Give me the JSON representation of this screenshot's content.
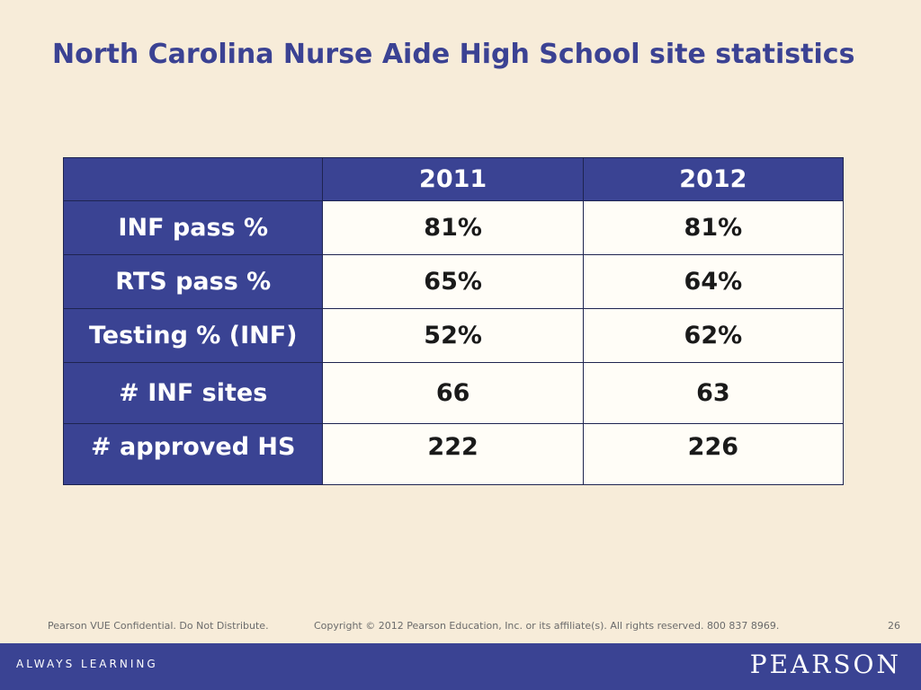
{
  "slide": {
    "title": "North Carolina Nurse Aide High School site statistics"
  },
  "table": {
    "headers": [
      "",
      "2011",
      "2012"
    ],
    "rows": [
      {
        "label": "INF pass %",
        "y2011": "81%",
        "y2012": "81%"
      },
      {
        "label": "RTS pass %",
        "y2011": "65%",
        "y2012": "64%"
      },
      {
        "label": "Testing % (INF)",
        "y2011": "52%",
        "y2012": "62%"
      },
      {
        "label": "# INF sites",
        "y2011": "66",
        "y2012": "63"
      },
      {
        "label": "# approved HS",
        "y2011": "222",
        "y2012": "226"
      }
    ]
  },
  "footer": {
    "confidential": "Pearson VUE Confidential. Do Not Distribute.",
    "copyright": "Copyright © 2012 Pearson Education, Inc. or its affiliate(s). All rights reserved. 800 837 8969.",
    "page_number": "26"
  },
  "bottom_bar": {
    "tagline": "ALWAYS LEARNING",
    "logo": "PEARSON"
  },
  "colors": {
    "background": "#f7ecd9",
    "accent_blue": "#3a4393",
    "title_blue": "#3b4293",
    "cell_background": "#fffdf7"
  }
}
